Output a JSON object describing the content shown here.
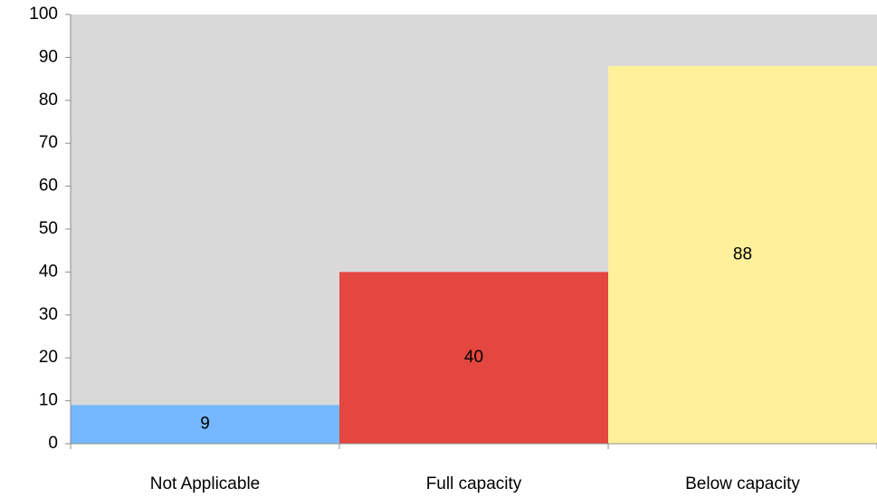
{
  "chart_data": {
    "type": "bar",
    "categories": [
      "Not Applicable",
      "Full capacity",
      "Below capacity"
    ],
    "values": [
      9,
      40,
      88
    ],
    "bar_colors": [
      "#75b8ff",
      "#e44640",
      "#fff19c"
    ],
    "plot_background": "#d9d9d9",
    "ylim": [
      0,
      100
    ],
    "yticks": [
      0,
      10,
      20,
      30,
      40,
      50,
      60,
      70,
      80,
      90,
      100
    ],
    "grid": false,
    "legend": "none",
    "data_labels": true,
    "xlabel": "",
    "ylabel": "",
    "title": ""
  }
}
